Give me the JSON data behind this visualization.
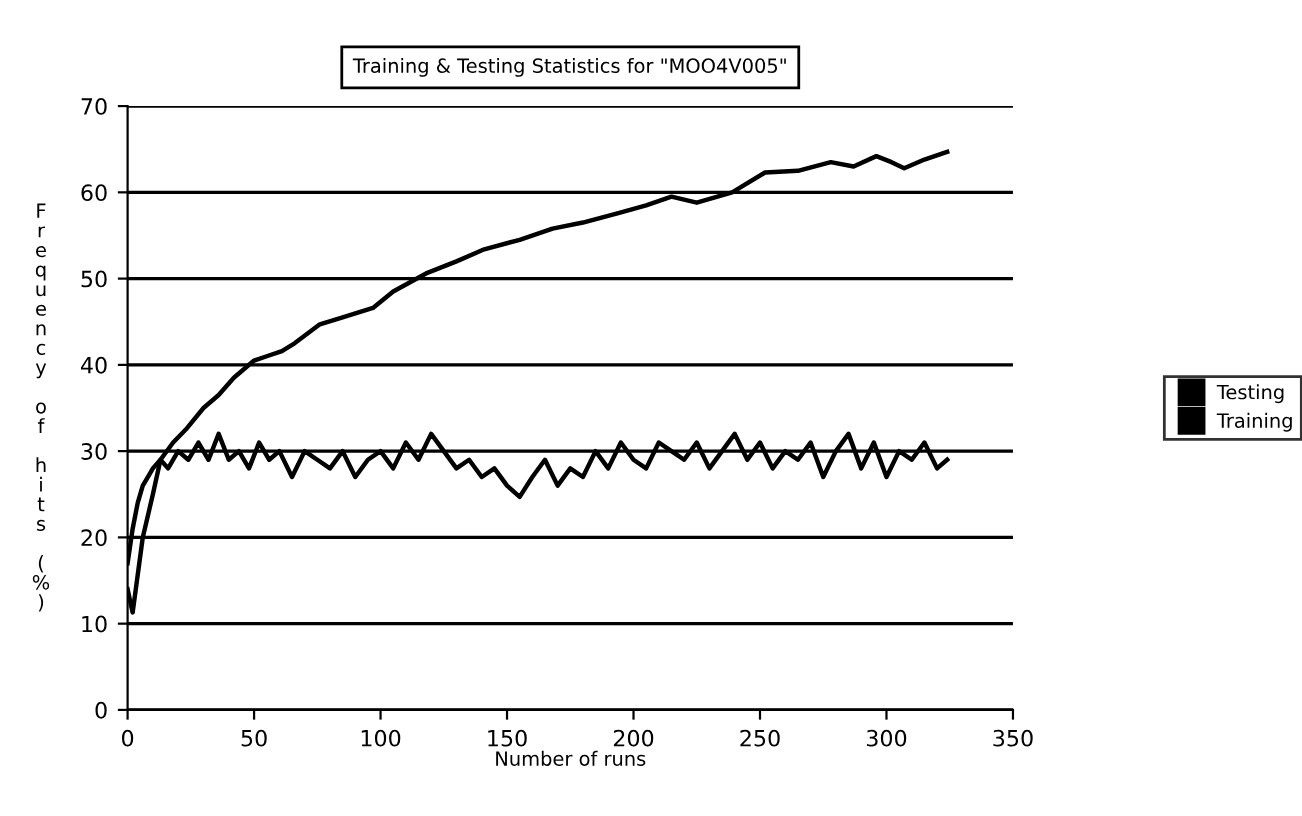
{
  "chart_data": {
    "type": "line",
    "title": "Training & Testing Statistics for \"MOO4V005\"",
    "xlabel": "Number of runs",
    "ylabel": "Frequency of hits (%)",
    "xlim": [
      0,
      350
    ],
    "xticks": [
      0,
      50,
      100,
      150,
      200,
      250,
      300,
      350
    ],
    "ylim": [
      0,
      70
    ],
    "yticks": [
      0,
      10,
      20,
      30,
      40,
      50,
      60,
      70
    ],
    "grid": "y",
    "legend": "right",
    "line_style": "solid",
    "marker": "none",
    "series": [
      {
        "name": "Testing",
        "color": "#000000",
        "x": [
          0,
          2,
          4,
          6,
          8,
          10,
          13,
          16,
          20,
          24,
          28,
          32,
          36,
          40,
          44,
          48,
          52,
          56,
          60,
          65,
          70,
          75,
          80,
          85,
          90,
          95,
          100,
          105,
          110,
          115,
          120,
          125,
          130,
          135,
          140,
          145,
          150,
          155,
          160,
          165,
          170,
          175,
          180,
          185,
          190,
          195,
          200,
          205,
          210,
          215,
          220,
          225,
          230,
          235,
          240,
          245,
          250,
          255,
          260,
          265,
          270,
          275,
          280,
          285,
          290,
          295,
          300,
          305,
          310,
          315,
          320,
          324
        ],
        "values": [
          17,
          21,
          24,
          26,
          27,
          28,
          29,
          28,
          30,
          29,
          31,
          29,
          32,
          29,
          30,
          28,
          31,
          29,
          30,
          27,
          30,
          29,
          28,
          30,
          27,
          29,
          30,
          28,
          31,
          29,
          32,
          30,
          28,
          29,
          27,
          28,
          26,
          24.7,
          27,
          29,
          26,
          28,
          27,
          30,
          28,
          31,
          29,
          28,
          31,
          30,
          29,
          31,
          28,
          30,
          32,
          29,
          31,
          28,
          30,
          29,
          31,
          27,
          30,
          32,
          28,
          31,
          27,
          30,
          29,
          31,
          28,
          29
        ]
      },
      {
        "name": "Training",
        "color": "#000000",
        "x": [
          0,
          2,
          6,
          10,
          13,
          18,
          23,
          30,
          36,
          42,
          50,
          55,
          61,
          66,
          76,
          85,
          97,
          105,
          118,
          130,
          141,
          155,
          168,
          180,
          194,
          205,
          215,
          225,
          239,
          252,
          265,
          278,
          287,
          296,
          302,
          307,
          315,
          324
        ],
        "values": [
          14,
          11.3,
          20,
          25,
          29,
          31,
          32.5,
          35,
          36.5,
          38.5,
          40.5,
          41,
          41.6,
          42.5,
          44.7,
          45.5,
          46.6,
          48.5,
          50.6,
          52,
          53.4,
          54.5,
          55.8,
          56.5,
          57.6,
          58.5,
          59.5,
          58.8,
          60,
          62.3,
          62.5,
          63.5,
          63,
          64.2,
          63.5,
          62.8,
          63.8,
          64.7
        ]
      }
    ]
  }
}
